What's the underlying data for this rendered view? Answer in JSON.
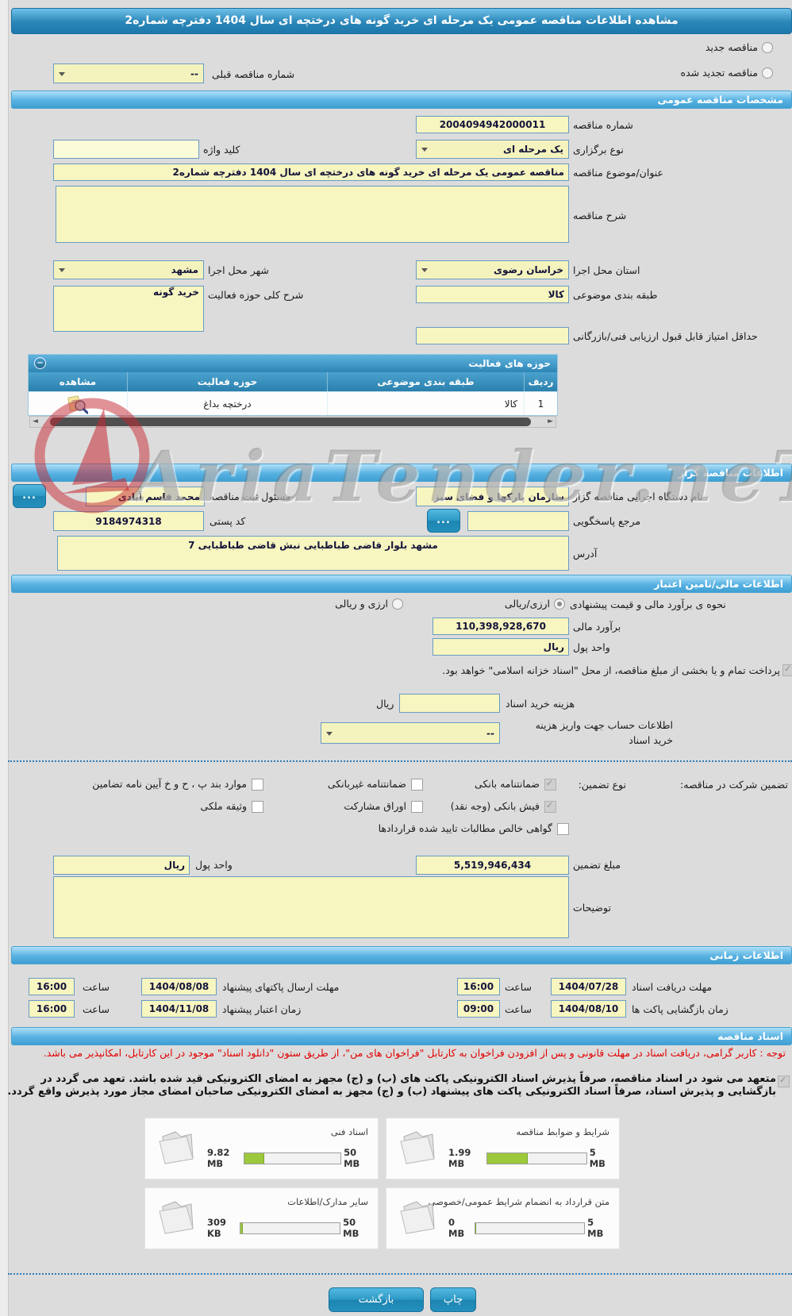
{
  "title": "مشاهده اطلاعات مناقصه عمومی یک مرحله ای خرید گونه های درختچه ای سال 1404 دفترچه شماره2",
  "watermark": "AriaTender.neT",
  "colors": {
    "header_blue": "#2f8fc4",
    "section_blue": "#57b1e2",
    "input_yellow": "#f7f5c0",
    "progress_green": "#9cc83c",
    "notice_red": "#e00000"
  },
  "top": {
    "radio_new_label": "مناقصه جدید",
    "radio_new_checked": false,
    "radio_renewed_label": "مناقصه تجدید شده",
    "radio_renewed_checked": false,
    "prev_number_label": "شماره مناقصه قبلی",
    "prev_number_value": "--"
  },
  "general": {
    "header": "مشخصات مناقصه عمومی",
    "number_label": "شماره مناقصه",
    "number_value": "2004094942000011",
    "type_label": "نوع برگزاری",
    "type_value": "یک مرحله ای",
    "keyword_label": "کلید واژه",
    "keyword_value": "",
    "subject_label": "عنوان/موضوع مناقصه",
    "subject_value": "مناقصه عمومی یک مرحله ای خرید گونه های درختچه ای سال 1404 دفترچه شماره2",
    "desc_label": "شرح مناقصه",
    "desc_value": "",
    "province_label": "استان محل اجرا",
    "province_value": "خراسان رضوی",
    "city_label": "شهر محل اجرا",
    "city_value": "مشهد",
    "category_label": "طبقه بندی موضوعی",
    "category_value": "کالا",
    "scope_label": "شرح کلی حوزه فعالیت",
    "scope_value": "خرید گونه",
    "min_score_label": "حداقل امتیاز قابل قبول ارزیابی فنی/بازرگانی",
    "min_score_value": ""
  },
  "table": {
    "header": "حوزه های فعالیت",
    "collapse_glyph": "−",
    "col_index": "ردیف",
    "col_category": "طبقه بندی موضوعی",
    "col_field": "حوزه فعالیت",
    "col_view": "مشاهده",
    "row": {
      "index": "1",
      "category": "کالا",
      "field": "درختچه بداغ"
    }
  },
  "organizer": {
    "header": "اطلاعات مناقصه گزار",
    "agency_label": "نام دستگاه اجرایی مناقصه گزار",
    "agency_value": "سازمان پارکها و فضای سبز",
    "registrar_label": "مسئول ثبت مناقصه",
    "registrar_value": "محمد قاسم آبادی",
    "browse_label": "...",
    "contact_label": "مرجع پاسخگویی",
    "contact_value": "",
    "postal_label": "کد پستی",
    "postal_value": "9184974318",
    "address_label": "آدرس",
    "address_value": "مشهد بلوار قاضی طباطبایی  نبش قاضی طباطبایی 7"
  },
  "financial": {
    "header": "اطلاعات مالی/تامین اعتبار",
    "method_label": "نحوه ی برآورد مالی و قیمت پیشنهادی",
    "radio_rial_label": "ارزی/ریالی",
    "radio_rial_checked": true,
    "radio_both_label": "ارزی و ریالی",
    "radio_both_checked": false,
    "estimate_label": "برآورد مالی",
    "estimate_value": "110,398,928,670",
    "currency_label": "واحد پول",
    "currency_value": "ریال",
    "treasury_note": "پرداخت تمام و یا بخشی از مبلغ مناقصه، از محل \"اسناد خزانه اسلامی\" خواهد بود.",
    "treasury_checked": true,
    "doc_fee_label": "هزینه خرید اسناد",
    "doc_fee_value": "",
    "doc_fee_unit": "ریال",
    "account_label_line1": "اطلاعات حساب جهت واریز هزینه",
    "account_label_line2": "خرید اسناد",
    "account_value": "--",
    "guarantee_section_label": "تضمین شرکت در مناقصه:",
    "guarantee_type_label": "نوع تضمین:",
    "options": [
      {
        "label": "ضمانتنامه بانکی",
        "checked": true
      },
      {
        "label": "ضمانتنامه غیربانکی",
        "checked": false
      },
      {
        "label": "موارد بند پ ، ح و خ آیین نامه تضامین",
        "checked": false
      },
      {
        "label": "فیش بانکی (وجه نقد)",
        "checked": true
      },
      {
        "label": "اوراق مشارکت",
        "checked": false
      },
      {
        "label": "وثیقه ملکی",
        "checked": false
      },
      {
        "label": "گواهی خالص مطالبات تایید شده قراردادها",
        "checked": false
      }
    ],
    "guarantee_amount_label": "مبلغ تضمین",
    "guarantee_amount_value": "5,519,946,434",
    "guarantee_currency_label": "واحد پول",
    "guarantee_currency_value": "ریال",
    "notes_label": "توضیحات",
    "notes_value": ""
  },
  "schedule": {
    "header": "اطلاعات زمانی",
    "items": [
      {
        "label": "مهلت دریافت اسناد",
        "date": "1404/07/28",
        "time_label": "ساعت",
        "time": "16:00"
      },
      {
        "label": "مهلت ارسال پاکتهای پیشنهاد",
        "date": "1404/08/08",
        "time_label": "ساعت",
        "time": "16:00"
      },
      {
        "label": "زمان بازگشایی پاکت ها",
        "date": "1404/08/10",
        "time_label": "ساعت",
        "time": "09:00"
      },
      {
        "label": "زمان اعتبار پیشنهاد",
        "date": "1404/11/08",
        "time_label": "ساعت",
        "time": "16:00"
      }
    ]
  },
  "documents": {
    "header": "اسناد مناقصه",
    "notice": "توجه : کاربر گرامی، دریافت اسناد در مهلت قانونی و پس از افزودن فراخوان به کارتابل \"فراخوان های من\"، از طریق ستون \"دانلود اسناد\" موجود در این کارتابل، امکانپذیر می باشد.",
    "commitment": "متعهد می شود در اسناد مناقصه، صرفاً پذیرش اسناد الکترونیکی پاکت های (ب) و (ج) مجهز به امضای الکترونیکی قید شده باشد. تعهد می گردد در بازگشایی و پذیرش اسناد، صرفاً اسناد الکترونیکی پاکت های پیشنهاد (ب) و (ج) مجهز به امضای الکترونیکی صاحبان امضای مجاز مورد پذیرش واقع گردد.",
    "commitment_checked": true,
    "cards": [
      {
        "title": "شرایط و ضوابط مناقصه",
        "used": "1.99 MB",
        "total": "5 MB",
        "percent": 40
      },
      {
        "title": "اسناد فنی",
        "used": "9.82 MB",
        "total": "50 MB",
        "percent": 20
      },
      {
        "title": "متن قرارداد به انضمام شرایط عمومی/خصوصی",
        "used": "0 MB",
        "total": "5 MB",
        "percent": 0
      },
      {
        "title": "سایر مدارک/اطلاعات",
        "used": "309 KB",
        "total": "50 MB",
        "percent": 1
      }
    ]
  },
  "footer": {
    "back": "بازگشت",
    "print": "چاپ"
  }
}
